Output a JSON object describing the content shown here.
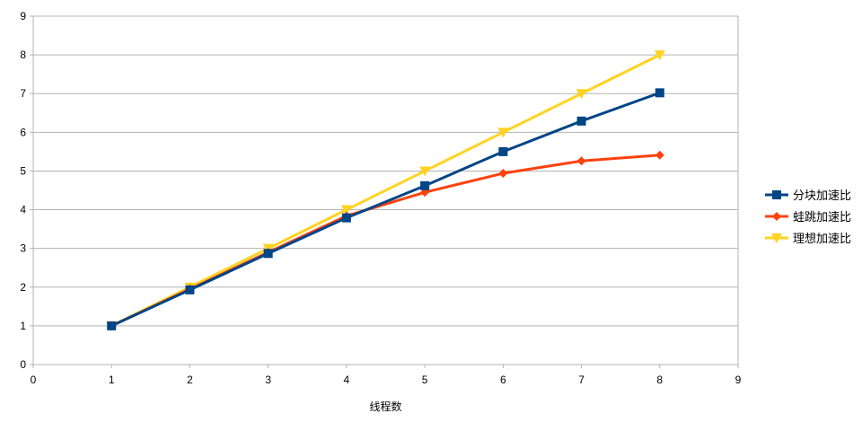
{
  "chart_data": {
    "type": "line",
    "title": "",
    "xlabel": "线程数",
    "ylabel": "",
    "xlim": [
      0,
      9
    ],
    "ylim": [
      0,
      9
    ],
    "x_ticks": [
      "0",
      "1",
      "2",
      "3",
      "4",
      "5",
      "6",
      "7",
      "8",
      "9"
    ],
    "y_ticks": [
      "0",
      "1",
      "2",
      "3",
      "4",
      "5",
      "6",
      "7",
      "8",
      "9"
    ],
    "grid": "horizontal",
    "legend_position": "right",
    "x": [
      1,
      2,
      3,
      4,
      5,
      6,
      7,
      8
    ],
    "series": [
      {
        "name": "分块加速比",
        "color": "#004586",
        "marker": "square",
        "values": [
          1.0,
          1.93,
          2.87,
          3.79,
          4.62,
          5.5,
          6.29,
          7.02
        ]
      },
      {
        "name": "蛙跳加速比",
        "color": "#ff420e",
        "marker": "diamond",
        "values": [
          1.0,
          1.95,
          2.9,
          3.84,
          4.45,
          4.94,
          5.26,
          5.41
        ]
      },
      {
        "name": "理想加速比",
        "color": "#ffd320",
        "marker": "triangle-down",
        "values": [
          1,
          2,
          3,
          4,
          5,
          6,
          7,
          8
        ]
      }
    ]
  }
}
